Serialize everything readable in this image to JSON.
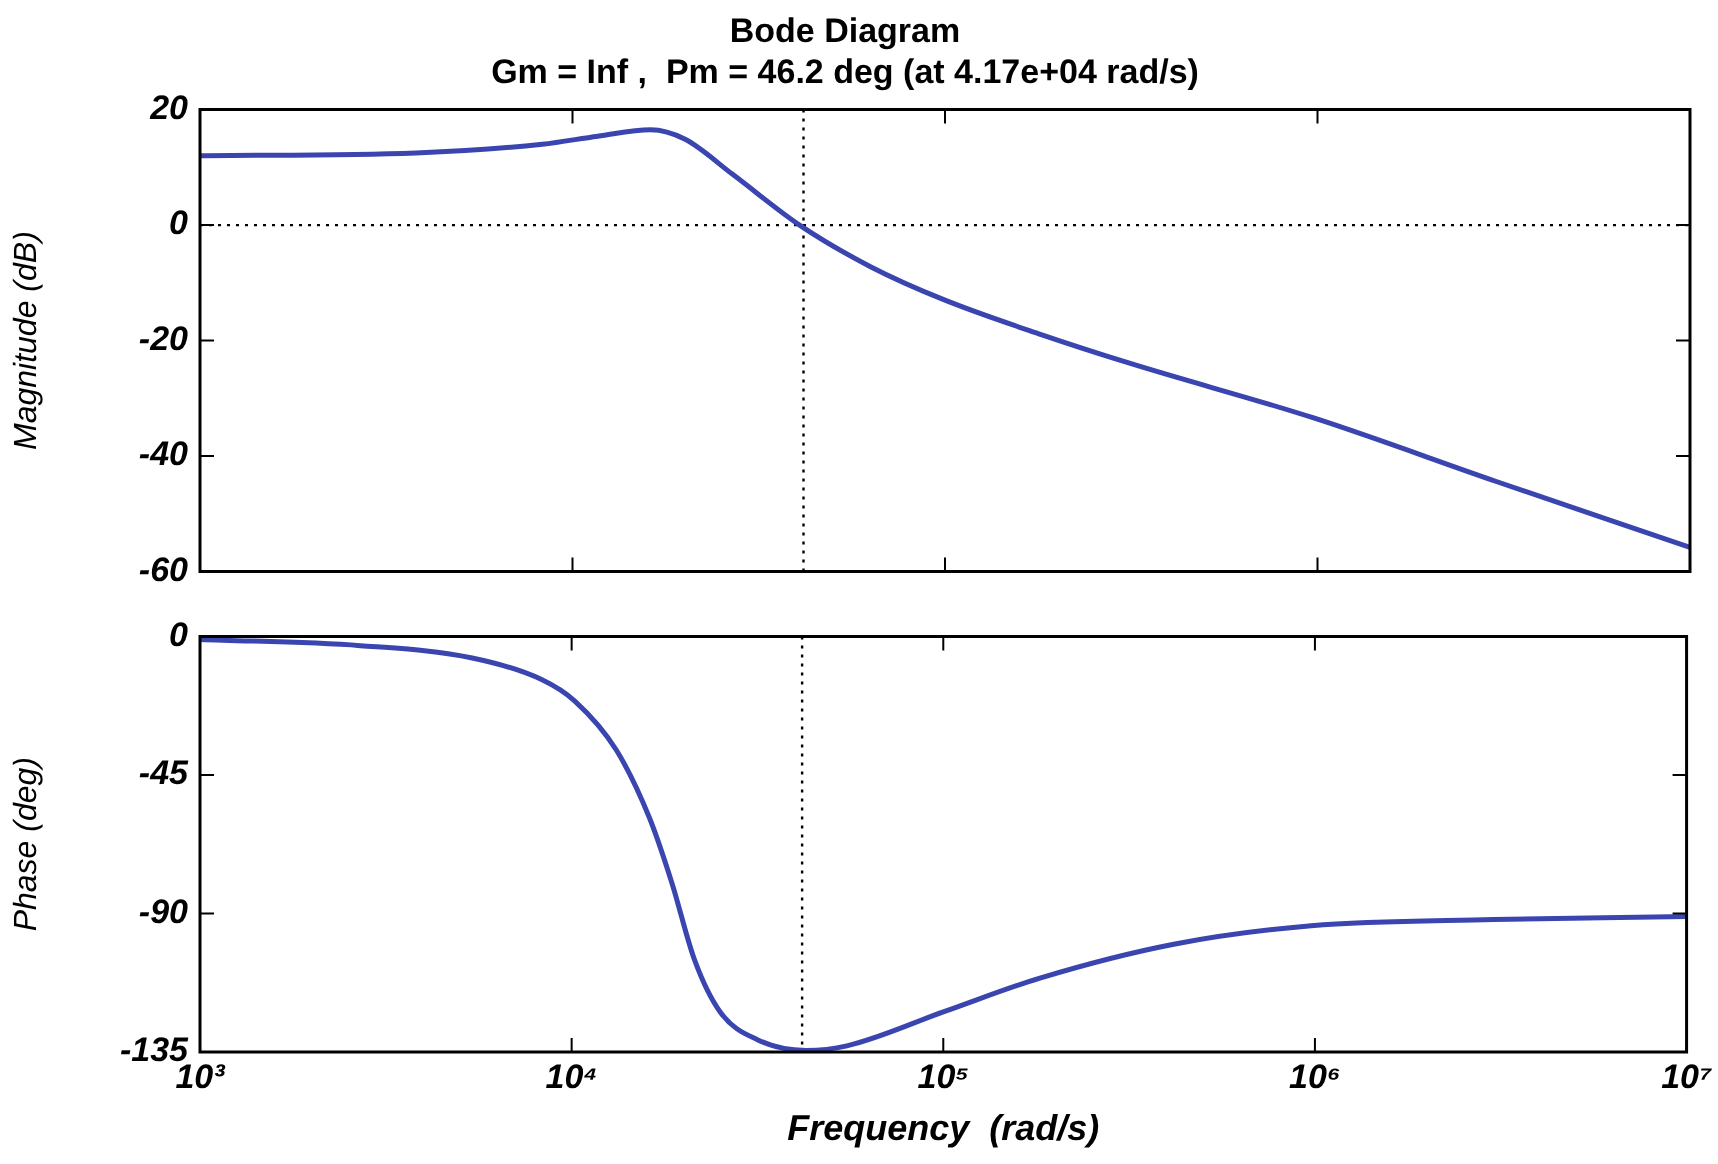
{
  "chart_data": [
    {
      "type": "line",
      "title": "Bode Diagram",
      "subtitle": "Gm = Inf ,  Pm = 46.2 deg (at 4.17e+04 rad/s)",
      "ylabel": "Magnitude (dB)",
      "log": "x",
      "xlim": [
        1000,
        10000000
      ],
      "xticks": [
        1000,
        10000,
        100000,
        1000000,
        10000000
      ],
      "ylim": [
        -60,
        20
      ],
      "yticks": [
        -60,
        -40,
        -20,
        0,
        20
      ],
      "tick_labels": "y",
      "grid": false,
      "legend": false,
      "ref_lines": [
        {
          "axis": "y",
          "value": 0,
          "color": "#000000",
          "line_style": "dotted"
        },
        {
          "axis": "x",
          "value": 41700,
          "color": "#000000",
          "line_style": "dotted"
        }
      ],
      "series": [
        {
          "color": "#3a45b0",
          "x": [
            1000,
            3800,
            8300,
            11700,
            16200,
            20000,
            26900,
            40700,
            63100,
            100000,
            182000,
            316000,
            977000,
            3020000,
            10000000
          ],
          "values": [
            12,
            12.5,
            14,
            15.4,
            16.5,
            14.9,
            8.8,
            0,
            -7.2,
            -13,
            -19,
            -24,
            -33.4,
            -44.4,
            -55.8
          ]
        }
      ]
    },
    {
      "type": "line",
      "xlabel": "Frequency  (rad/s)",
      "ylabel": "Phase (deg)",
      "log": "x",
      "xlim": [
        1000,
        10000000
      ],
      "xticks": [
        {
          "value": 1000,
          "label": "10³"
        },
        {
          "value": 10000,
          "label": "10⁴"
        },
        {
          "value": 100000,
          "label": "10⁵"
        },
        {
          "value": 1000000,
          "label": "10⁶"
        },
        {
          "value": 10000000,
          "label": "10⁷"
        }
      ],
      "ylim": [
        -135,
        0
      ],
      "yticks": [
        -135,
        -90,
        -45,
        0
      ],
      "grid": false,
      "legend": false,
      "ref_lines": [
        {
          "axis": "x",
          "value": 41700,
          "color": "#000000",
          "line_style": "dotted"
        }
      ],
      "series": [
        {
          "color": "#3a45b0",
          "x": [
            1000,
            2700,
            5400,
            8300,
            10200,
            13200,
            16200,
            18600,
            21400,
            25100,
            31600,
            42700,
            55000,
            100000,
            182000,
            417000,
            977000,
            3020000,
            10000000
          ],
          "values": [
            -1,
            -3,
            -7,
            -14,
            -21,
            -37,
            -59,
            -80,
            -105,
            -122,
            -131,
            -134.5,
            -133,
            -122,
            -111,
            -100,
            -94,
            -92,
            -91
          ]
        }
      ]
    }
  ]
}
